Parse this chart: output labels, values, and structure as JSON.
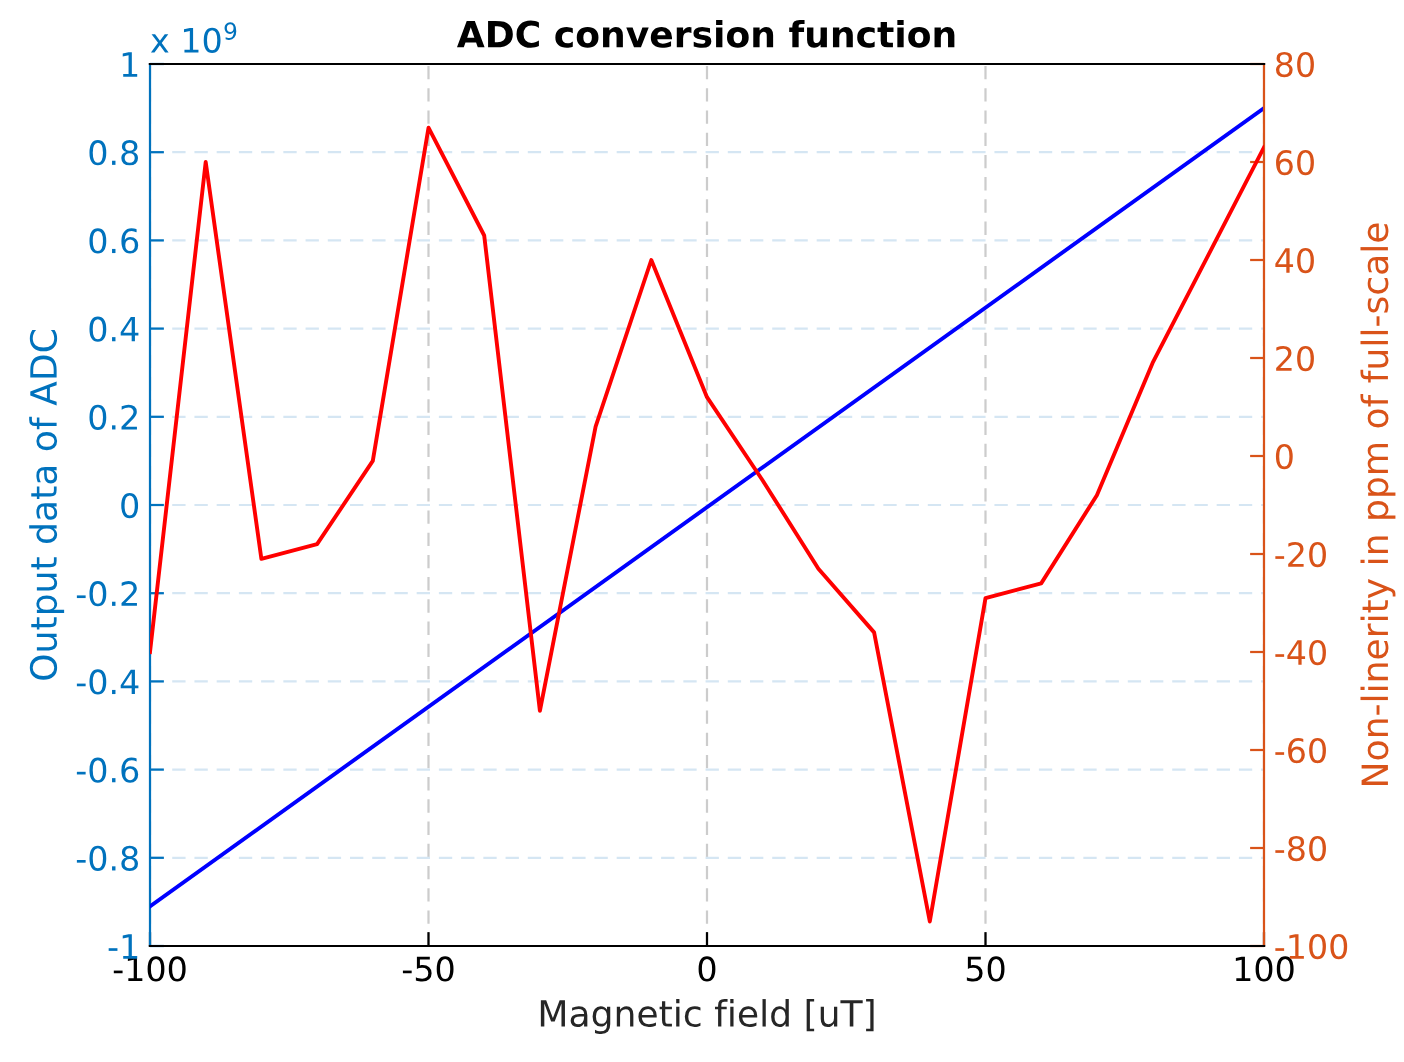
{
  "chart_data": {
    "type": "line",
    "title": "ADC conversion function",
    "xlabel": "Magnetic field [uT]",
    "ylabel": "Output data of ADC",
    "y2label": "Non-linerity in ppm of full-scale",
    "annotations": [
      "x 10$^{9}$"
    ],
    "series": [
      {
        "color": "#0000ff",
        "x": [
          -100,
          100
        ],
        "values": [
          -0.91,
          0.9
        ]
      },
      {
        "color": "#ff0000",
        "axis": "y2",
        "x": [
          -100,
          -90,
          -80,
          -70,
          -60,
          -50,
          -40,
          -30,
          -20,
          -10,
          0,
          10,
          20,
          30,
          40,
          50,
          60,
          70,
          80,
          90,
          100
        ],
        "values": [
          -40,
          60,
          -21,
          -18,
          -1,
          67,
          45,
          -52,
          6,
          40,
          12,
          -5,
          -23,
          -36,
          -95,
          -29,
          -26,
          -8,
          19,
          41,
          63
        ]
      }
    ],
    "xlim": [
      -100,
      100
    ],
    "xticks": [
      -100,
      -50,
      0,
      50,
      100
    ],
    "ylim": [
      -1,
      1
    ],
    "yticks": [
      -1,
      -0.8,
      -0.6,
      -0.4,
      -0.2,
      0,
      0.2,
      0.4,
      0.6,
      0.8,
      1
    ],
    "y2lim": [
      -100,
      80
    ],
    "y2ticks": [
      -100,
      -80,
      -60,
      -40,
      -20,
      0,
      20,
      40,
      60,
      80
    ],
    "grid": true,
    "legend": false,
    "marker": "none",
    "line_style": "solid"
  }
}
